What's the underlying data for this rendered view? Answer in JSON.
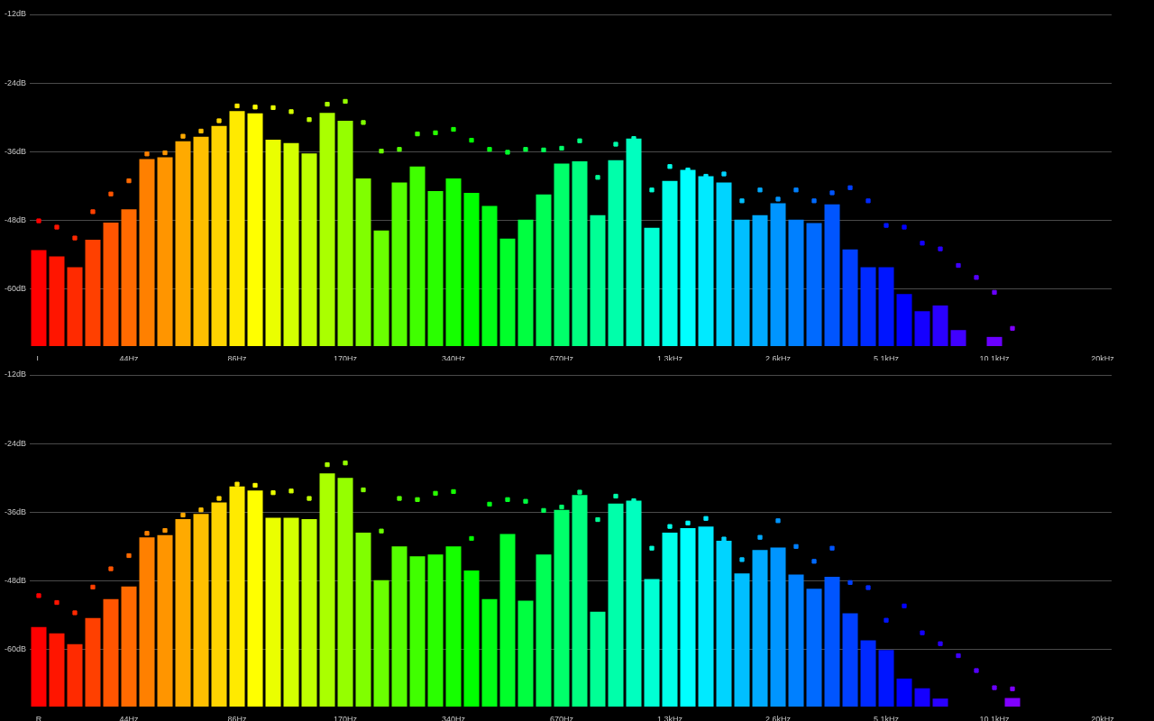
{
  "chart_data": [
    {
      "type": "bar",
      "categories": [
        "L",
        null,
        null,
        null,
        null,
        "44Hz",
        null,
        null,
        null,
        null,
        null,
        "86Hz",
        null,
        null,
        null,
        null,
        null,
        "170Hz",
        null,
        null,
        null,
        null,
        null,
        "340Hz",
        null,
        null,
        null,
        null,
        null,
        "670Hz",
        null,
        null,
        null,
        null,
        null,
        "1.3kHz",
        null,
        null,
        null,
        null,
        null,
        "2.6kHz",
        null,
        null,
        null,
        null,
        null,
        "5.1kHz",
        null,
        null,
        null,
        null,
        null,
        "10.1kHz",
        null,
        null,
        null,
        null,
        null,
        "20kHz"
      ],
      "ylim": [
        -70,
        -12
      ],
      "yticks": [
        {
          "value": -12,
          "label": "-12dB"
        },
        {
          "value": -24,
          "label": "-24dB"
        },
        {
          "value": -36,
          "label": "-36dB"
        },
        {
          "value": -48,
          "label": "-48dB"
        },
        {
          "value": -60,
          "label": "-60dB"
        }
      ],
      "grid": "y",
      "legend": false,
      "series": [
        {
          "base": [
            -70,
            -70,
            -70,
            -70,
            -70,
            -70,
            -70,
            -70,
            -70,
            -70,
            -70,
            -70,
            -70,
            -70,
            -70,
            -70,
            -70,
            -70,
            -70,
            -70,
            -70,
            -70,
            -70,
            -70,
            -70,
            -70,
            -70,
            -70,
            -70,
            -70,
            -70,
            -70,
            -70,
            -70,
            -70,
            -70,
            -70,
            -70,
            -70,
            -70,
            -70,
            -70,
            -70,
            -70,
            -70,
            -70,
            -70,
            -70,
            -70,
            -70,
            -70,
            -70,
            null,
            -70,
            null,
            null,
            null,
            null,
            null,
            null
          ],
          "values": [
            16.8,
            15.7,
            13.8,
            18.6,
            21.6,
            23.9,
            32.7,
            33.0,
            35.8,
            36.6,
            38.5,
            41.1,
            40.7,
            36.1,
            35.5,
            33.7,
            40.8,
            39.4,
            29.3,
            20.2,
            28.6,
            31.4,
            27.1,
            29.3,
            26.8,
            24.5,
            18.8,
            22.1,
            26.5,
            31.9,
            32.3,
            22.9,
            32.5,
            36.3,
            20.7,
            28.9,
            30.8,
            29.7,
            28.6,
            22.1,
            22.9,
            25.0,
            22.1,
            21.5,
            24.8,
            16.9,
            13.8,
            13.8,
            9.1,
            6.1,
            7.1,
            2.8,
            null,
            1.6,
            null,
            null,
            null,
            null,
            null,
            null
          ],
          "colors": [
            "#ff0000",
            "#ff1500",
            "#ff2a00",
            "#ff4000",
            "#ff5500",
            "#ff6a00",
            "#ff8000",
            "#ff9500",
            "#ffaa00",
            "#ffbf00",
            "#ffd400",
            "#ffea00",
            "#ffff00",
            "#eaff00",
            "#d4ff00",
            "#bfff00",
            "#aaff00",
            "#95ff00",
            "#80ff00",
            "#6aff00",
            "#55ff00",
            "#40ff00",
            "#2aff00",
            "#15ff00",
            "#00ff00",
            "#00ff15",
            "#00ff2a",
            "#00ff40",
            "#00ff55",
            "#00ff6a",
            "#00ff80",
            "#00ff95",
            "#00ffaa",
            "#00ffbf",
            "#00ffd4",
            "#00ffea",
            "#00ffff",
            "#00eaff",
            "#00d4ff",
            "#00bfff",
            "#00aaff",
            "#0095ff",
            "#0080ff",
            "#006aff",
            "#0055ff",
            "#0040ff",
            "#002aff",
            "#0015ff",
            "#0000ff",
            "#1500ff",
            "#2a00ff",
            "#4000ff",
            null,
            "#6a00ff",
            null,
            null,
            null,
            null,
            null,
            null
          ]
        },
        {
          "type": "scatter",
          "marker": "square",
          "values": [
            -48.1,
            -49.2,
            -51.1,
            -46.5,
            -43.4,
            -41.1,
            -36.4,
            -36.2,
            -33.3,
            -32.4,
            -30.6,
            -28.0,
            -28.2,
            -28.3,
            -29.0,
            -30.4,
            -27.7,
            -27.2,
            -30.9,
            -35.9,
            -35.6,
            -32.9,
            -32.7,
            -32.1,
            -34.0,
            -35.6,
            -36.1,
            -35.6,
            -35.7,
            -35.4,
            -34.1,
            -40.5,
            -34.7,
            -33.7,
            -42.7,
            -38.6,
            -39.2,
            -40.3,
            -39.9,
            -44.6,
            -42.7,
            -44.3,
            -42.7,
            -44.6,
            -43.2,
            -42.3,
            -44.6,
            -48.9,
            -49.2,
            -52.0,
            -53.0,
            -55.9,
            -58.0,
            -60.6,
            -66.9,
            null,
            null,
            null,
            null,
            null
          ],
          "colors": [
            "#ff0000",
            "#ff1500",
            "#ff2a00",
            "#ff4000",
            "#ff5500",
            "#ff6a00",
            "#ff8000",
            "#ff9500",
            "#ffaa00",
            "#ffbf00",
            "#ffd400",
            "#ffea00",
            "#ffff00",
            "#eaff00",
            "#d4ff00",
            "#bfff00",
            "#aaff00",
            "#95ff00",
            "#80ff00",
            "#6aff00",
            "#55ff00",
            "#40ff00",
            "#2aff00",
            "#15ff00",
            "#00ff00",
            "#00ff15",
            "#00ff2a",
            "#00ff40",
            "#00ff55",
            "#00ff6a",
            "#00ff80",
            "#00ff95",
            "#00ffaa",
            "#00ffbf",
            "#00ffd4",
            "#00ffea",
            "#00ffff",
            "#00eaff",
            "#00d4ff",
            "#00bfff",
            "#00aaff",
            "#0095ff",
            "#0080ff",
            "#006aff",
            "#0055ff",
            "#0040ff",
            "#002aff",
            "#0015ff",
            "#0000ff",
            "#1500ff",
            "#2a00ff",
            "#4000ff",
            "#5500ff",
            "#6a00ff",
            "#8000ff",
            null,
            null,
            null,
            null,
            null
          ]
        }
      ]
    },
    {
      "type": "bar",
      "categories": [
        "R",
        null,
        null,
        null,
        null,
        "44Hz",
        null,
        null,
        null,
        null,
        null,
        "86Hz",
        null,
        null,
        null,
        null,
        null,
        "170Hz",
        null,
        null,
        null,
        null,
        null,
        "340Hz",
        null,
        null,
        null,
        null,
        null,
        "670Hz",
        null,
        null,
        null,
        null,
        null,
        "1.3kHz",
        null,
        null,
        null,
        null,
        null,
        "2.6kHz",
        null,
        null,
        null,
        null,
        null,
        "5.1kHz",
        null,
        null,
        null,
        null,
        null,
        "10.1kHz",
        null,
        null,
        null,
        null,
        null,
        "20kHz"
      ],
      "ylim": [
        -70,
        -12
      ],
      "yticks": [
        {
          "value": -12,
          "label": "-12dB"
        },
        {
          "value": -24,
          "label": "-24dB"
        },
        {
          "value": -36,
          "label": "-36dB"
        },
        {
          "value": -48,
          "label": "-48dB"
        },
        {
          "value": -60,
          "label": "-60dB"
        }
      ],
      "grid": "y",
      "legend": false,
      "series": [
        {
          "base": [
            -70,
            -70,
            -70,
            -70,
            -70,
            -70,
            -70,
            -70,
            -70,
            -70,
            -70,
            -70,
            -70,
            -70,
            -70,
            -70,
            -70,
            -70,
            -70,
            -70,
            -70,
            -70,
            -70,
            -70,
            -70,
            -70,
            -70,
            -70,
            -70,
            -70,
            -70,
            -70,
            -70,
            -70,
            -70,
            -70,
            -70,
            -70,
            -70,
            -70,
            -70,
            -70,
            -70,
            -70,
            -70,
            -70,
            -70,
            -70,
            -70,
            -70,
            -70,
            null,
            null,
            null,
            -70,
            null,
            null,
            null,
            null,
            null
          ],
          "values": [
            13.9,
            12.8,
            10.9,
            15.5,
            18.8,
            21.0,
            29.6,
            30.0,
            32.8,
            33.7,
            35.7,
            38.5,
            37.8,
            33.0,
            33.0,
            32.8,
            40.8,
            40.0,
            30.4,
            22.1,
            28.0,
            26.3,
            26.6,
            28.0,
            23.8,
            18.8,
            30.2,
            18.5,
            26.6,
            34.4,
            37.0,
            16.6,
            35.5,
            36.0,
            22.3,
            30.4,
            31.2,
            31.5,
            29.0,
            23.3,
            27.4,
            27.8,
            23.1,
            20.6,
            22.7,
            16.3,
            11.6,
            9.9,
            4.9,
            3.2,
            1.4,
            null,
            null,
            null,
            1.5,
            null,
            null,
            null,
            null,
            null
          ],
          "colors": [
            "#ff0000",
            "#ff1500",
            "#ff2a00",
            "#ff4000",
            "#ff5500",
            "#ff6a00",
            "#ff8000",
            "#ff9500",
            "#ffaa00",
            "#ffbf00",
            "#ffd400",
            "#ffea00",
            "#ffff00",
            "#eaff00",
            "#d4ff00",
            "#bfff00",
            "#aaff00",
            "#95ff00",
            "#80ff00",
            "#6aff00",
            "#55ff00",
            "#40ff00",
            "#2aff00",
            "#15ff00",
            "#00ff00",
            "#00ff15",
            "#00ff2a",
            "#00ff40",
            "#00ff55",
            "#00ff6a",
            "#00ff80",
            "#00ff95",
            "#00ffaa",
            "#00ffbf",
            "#00ffd4",
            "#00ffea",
            "#00ffff",
            "#00eaff",
            "#00d4ff",
            "#00bfff",
            "#00aaff",
            "#0095ff",
            "#0080ff",
            "#006aff",
            "#0055ff",
            "#0040ff",
            "#002aff",
            "#0015ff",
            "#0000ff",
            "#1500ff",
            "#2a00ff",
            null,
            null,
            null,
            "#8000ff",
            null,
            null,
            null,
            null,
            null
          ]
        },
        {
          "type": "scatter",
          "marker": "square",
          "values": [
            -50.6,
            -51.8,
            -53.6,
            -49.1,
            -45.9,
            -43.6,
            -39.7,
            -39.2,
            -36.5,
            -35.6,
            -33.6,
            -31.1,
            -31.3,
            -32.6,
            -32.3,
            -33.6,
            -27.7,
            -27.4,
            -32.1,
            -39.3,
            -33.6,
            -33.8,
            -32.7,
            -32.4,
            -40.6,
            -34.6,
            -33.8,
            -34.1,
            -35.7,
            -35.1,
            -32.5,
            -37.3,
            -33.2,
            -34.0,
            -42.3,
            -38.5,
            -37.9,
            -37.1,
            -40.7,
            -44.3,
            -40.4,
            -37.5,
            -42.0,
            -44.6,
            -42.3,
            -48.3,
            -49.2,
            -54.9,
            -52.4,
            -57.1,
            -59.0,
            -61.1,
            -63.7,
            -66.7,
            -66.9,
            null,
            null,
            null,
            null,
            null
          ],
          "colors": [
            "#ff0000",
            "#ff1500",
            "#ff2a00",
            "#ff4000",
            "#ff5500",
            "#ff6a00",
            "#ff8000",
            "#ff9500",
            "#ffaa00",
            "#ffbf00",
            "#ffd400",
            "#ffea00",
            "#ffff00",
            "#eaff00",
            "#d4ff00",
            "#bfff00",
            "#aaff00",
            "#95ff00",
            "#80ff00",
            "#6aff00",
            "#55ff00",
            "#40ff00",
            "#2aff00",
            "#15ff00",
            "#00ff00",
            "#00ff15",
            "#00ff2a",
            "#00ff40",
            "#00ff55",
            "#00ff6a",
            "#00ff80",
            "#00ff95",
            "#00ffaa",
            "#00ffbf",
            "#00ffd4",
            "#00ffea",
            "#00ffff",
            "#00eaff",
            "#00d4ff",
            "#00bfff",
            "#00aaff",
            "#0095ff",
            "#0080ff",
            "#006aff",
            "#0055ff",
            "#0040ff",
            "#002aff",
            "#0015ff",
            "#0000ff",
            "#1500ff",
            "#2a00ff",
            "#4000ff",
            "#5500ff",
            "#6a00ff",
            "#8000ff",
            null,
            null,
            null,
            null,
            null
          ]
        }
      ]
    }
  ]
}
